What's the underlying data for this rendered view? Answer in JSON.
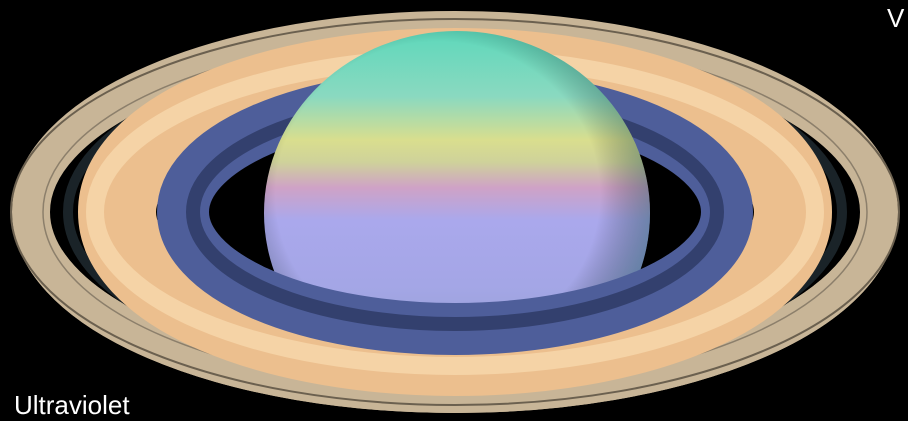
{
  "labels": {
    "bottom_left": "Ultraviolet",
    "top_right": "V"
  }
}
